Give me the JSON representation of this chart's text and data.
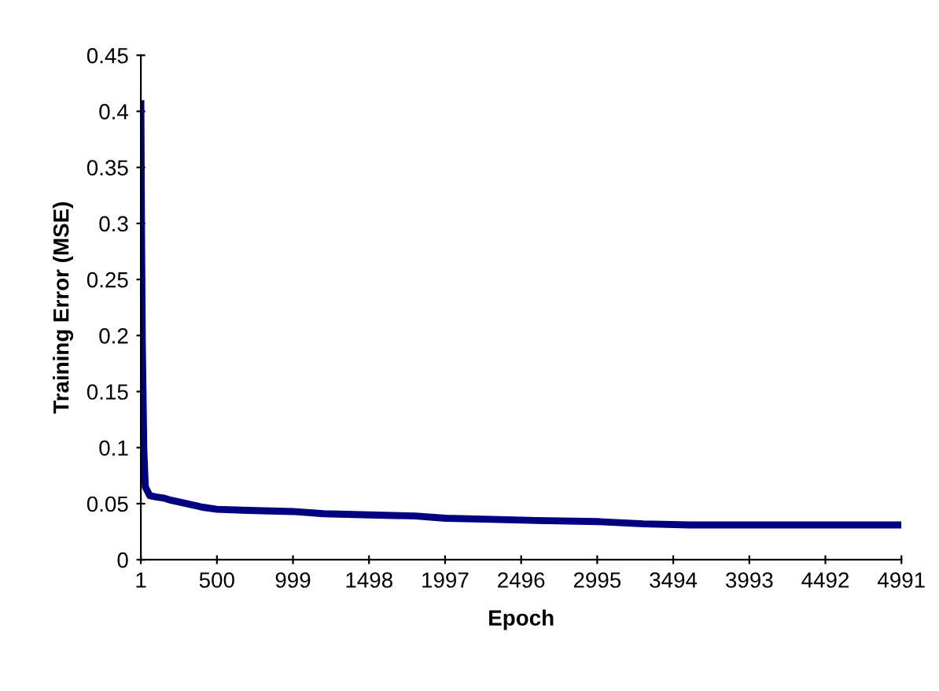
{
  "chart_data": {
    "type": "line",
    "xlabel": "Epoch",
    "ylabel": "Training Error (MSE)",
    "x": [
      1,
      5,
      10,
      20,
      30,
      60,
      100,
      150,
      200,
      300,
      400,
      500,
      700,
      1000,
      1200,
      1500,
      1800,
      2000,
      2300,
      2600,
      3000,
      3300,
      3600,
      4000,
      4500,
      4991
    ],
    "series": [
      {
        "color": "#000080",
        "values": [
          0.41,
          0.3,
          0.2,
          0.1,
          0.065,
          0.057,
          0.056,
          0.055,
          0.053,
          0.05,
          0.047,
          0.045,
          0.044,
          0.043,
          0.041,
          0.04,
          0.039,
          0.037,
          0.036,
          0.035,
          0.034,
          0.032,
          0.031,
          0.031,
          0.031,
          0.031
        ]
      }
    ],
    "xlim": [
      1,
      4991
    ],
    "xticks": [
      1,
      500,
      999,
      1498,
      1997,
      2496,
      2995,
      3494,
      3993,
      4492,
      4991
    ],
    "ylim": [
      0,
      0.45
    ],
    "yticks": [
      0,
      0.05,
      0.1,
      0.15,
      0.2,
      0.25,
      0.3,
      0.35,
      0.4,
      0.45
    ],
    "grid": false,
    "legend": false,
    "marker": "none",
    "line_style": "solid"
  }
}
